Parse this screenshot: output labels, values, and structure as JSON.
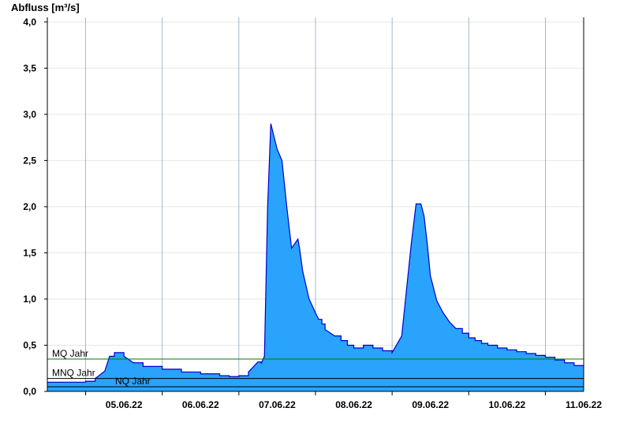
{
  "chart_data": {
    "type": "area",
    "title": "",
    "ylabel": "Abfluss [m³/s]",
    "xlabel": "",
    "ylim": [
      0,
      4.05
    ],
    "xlim": [
      "2022-06-04 12:00",
      "2022-06-11 12:00"
    ],
    "yticks": [
      0,
      0.5,
      1.0,
      1.5,
      2.0,
      2.5,
      3.0,
      3.5,
      4.0
    ],
    "ytick_labels": [
      "0,0",
      "0,5",
      "1,0",
      "1,5",
      "2,0",
      "2,5",
      "3,0",
      "3,5",
      "4,0"
    ],
    "xticks": [
      "2022-06-05 12:00",
      "2022-06-06 12:00",
      "2022-06-07 12:00",
      "2022-06-08 12:00",
      "2022-06-09 12:00",
      "2022-06-10 12:00",
      "2022-06-11 12:00"
    ],
    "xtick_labels": [
      "05.06.22",
      "06.06.22",
      "07.06.22",
      "08.06.22",
      "09.06.22",
      "10.06.22",
      "11.06.22"
    ],
    "grid": true,
    "colors": {
      "area": "#29a3fc",
      "line": "#0000cc",
      "mq": "#007a00",
      "ref": "#000000"
    },
    "reference_lines": [
      {
        "name": "MQ Jahr",
        "value": 0.35
      },
      {
        "name": "MNQ Jahr",
        "value": 0.14
      },
      {
        "name": "NQ Jahr",
        "value": 0.05
      }
    ],
    "series": [
      {
        "x": [
          "2022-06-04 12:00",
          "2022-06-05 00:00",
          "2022-06-05 03:00",
          "2022-06-05 06:00",
          "2022-06-05 07:30",
          "2022-06-05 09:00",
          "2022-06-05 12:00",
          "2022-06-05 15:00",
          "2022-06-05 18:00",
          "2022-06-06 00:00",
          "2022-06-06 06:00",
          "2022-06-06 12:00",
          "2022-06-06 18:00",
          "2022-06-06 21:00",
          "2022-06-07 00:00",
          "2022-06-07 03:00",
          "2022-06-07 06:00",
          "2022-06-07 07:00",
          "2022-06-07 08:00",
          "2022-06-07 09:00",
          "2022-06-07 10:00",
          "2022-06-07 12:00",
          "2022-06-07 13:30",
          "2022-06-07 15:00",
          "2022-06-07 16:30",
          "2022-06-07 18:30",
          "2022-06-07 19:00",
          "2022-06-07 20:00",
          "2022-06-07 22:00",
          "2022-06-08 00:00",
          "2022-06-08 01:00",
          "2022-06-08 02:00",
          "2022-06-08 03:00",
          "2022-06-08 06:00",
          "2022-06-08 08:00",
          "2022-06-08 10:00",
          "2022-06-08 12:00",
          "2022-06-08 15:00",
          "2022-06-08 18:00",
          "2022-06-08 21:00",
          "2022-06-09 00:00",
          "2022-06-09 03:00",
          "2022-06-09 06:00",
          "2022-06-09 07:30",
          "2022-06-09 09:00",
          "2022-06-09 10:00",
          "2022-06-09 11:00",
          "2022-06-09 12:00",
          "2022-06-09 14:00",
          "2022-06-09 16:00",
          "2022-06-09 18:00",
          "2022-06-09 20:00",
          "2022-06-09 22:00",
          "2022-06-10 00:00",
          "2022-06-10 02:00",
          "2022-06-10 04:00",
          "2022-06-10 06:00",
          "2022-06-10 09:00",
          "2022-06-10 12:00",
          "2022-06-10 15:00",
          "2022-06-10 18:00",
          "2022-06-10 21:00",
          "2022-06-11 00:00",
          "2022-06-11 03:00",
          "2022-06-11 06:00",
          "2022-06-11 09:00",
          "2022-06-11 12:00"
        ],
        "values": [
          0.1,
          0.11,
          0.14,
          0.22,
          0.38,
          0.42,
          0.38,
          0.31,
          0.27,
          0.24,
          0.21,
          0.19,
          0.17,
          0.16,
          0.17,
          0.21,
          0.32,
          0.3,
          0.38,
          2.0,
          2.9,
          2.62,
          2.5,
          2.0,
          1.55,
          1.65,
          1.55,
          1.3,
          1.0,
          0.85,
          0.78,
          0.73,
          0.67,
          0.6,
          0.55,
          0.5,
          0.47,
          0.5,
          0.47,
          0.44,
          0.42,
          0.6,
          1.6,
          2.03,
          2.03,
          1.9,
          1.6,
          1.25,
          0.98,
          0.85,
          0.75,
          0.68,
          0.63,
          0.58,
          0.55,
          0.52,
          0.5,
          0.47,
          0.45,
          0.43,
          0.41,
          0.39,
          0.37,
          0.34,
          0.31,
          0.28,
          0.27
        ]
      }
    ]
  }
}
